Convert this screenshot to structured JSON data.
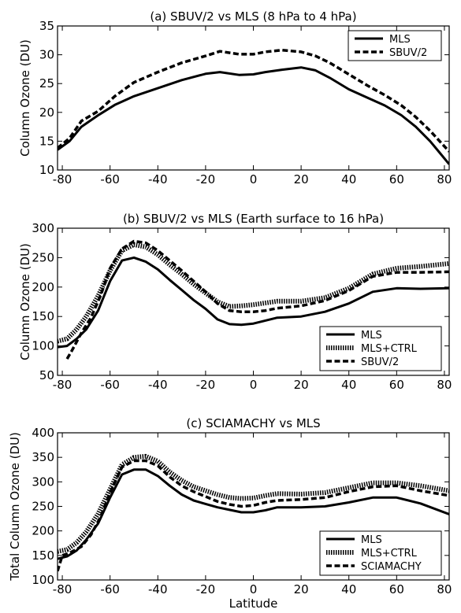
{
  "chart_data": [
    {
      "type": "line",
      "title": "(a) SBUV/2 vs MLS (8 hPa to 4 hPa)",
      "xlabel": "",
      "ylabel": "Column Ozone (DU)",
      "xlim": [
        -82,
        82
      ],
      "ylim": [
        10,
        35
      ],
      "xticks": [
        -80,
        -60,
        -40,
        -20,
        0,
        20,
        40,
        60,
        80
      ],
      "yticks": [
        10,
        15,
        20,
        25,
        30,
        35
      ],
      "legend_position": "top-right",
      "series": [
        {
          "name": "MLS",
          "style": "solid",
          "x": [
            -82,
            -77,
            -72,
            -65,
            -58,
            -50,
            -40,
            -30,
            -20,
            -14,
            -6,
            0,
            5,
            12,
            20,
            26,
            32,
            40,
            48,
            55,
            62,
            68,
            74,
            78,
            82
          ],
          "y": [
            13.5,
            15.0,
            17.5,
            19.5,
            21.3,
            22.8,
            24.2,
            25.6,
            26.7,
            27.0,
            26.5,
            26.6,
            27.0,
            27.4,
            27.8,
            27.3,
            26.0,
            24.0,
            22.5,
            21.2,
            19.5,
            17.5,
            15.0,
            13.0,
            11.0
          ]
        },
        {
          "name": "SBUV/2",
          "style": "dashed",
          "x": [
            -82,
            -77,
            -72,
            -65,
            -58,
            -50,
            -40,
            -30,
            -20,
            -14,
            -6,
            0,
            5,
            12,
            20,
            26,
            32,
            40,
            48,
            55,
            62,
            68,
            74,
            78,
            82
          ],
          "y": [
            13.8,
            15.5,
            18.5,
            20.2,
            22.8,
            25.2,
            27.0,
            28.6,
            29.8,
            30.6,
            30.1,
            30.1,
            30.5,
            30.8,
            30.5,
            29.8,
            28.6,
            26.6,
            24.6,
            23.0,
            21.2,
            19.2,
            16.8,
            15.0,
            13.2
          ]
        }
      ]
    },
    {
      "type": "line",
      "title": "(b) SBUV/2 vs MLS (Earth surface to  16 hPa)",
      "xlabel": "",
      "ylabel": "Column Ozone (DU)",
      "xlim": [
        -82,
        82
      ],
      "ylim": [
        50,
        300
      ],
      "xticks": [
        -80,
        -60,
        -40,
        -20,
        0,
        20,
        40,
        60,
        80
      ],
      "yticks": [
        50,
        100,
        150,
        200,
        250,
        300
      ],
      "legend_position": "bottom-right",
      "series": [
        {
          "name": "MLS",
          "style": "solid",
          "x": [
            -82,
            -78,
            -74,
            -70,
            -65,
            -60,
            -55,
            -50,
            -45,
            -40,
            -35,
            -30,
            -25,
            -20,
            -15,
            -10,
            -5,
            0,
            5,
            10,
            20,
            30,
            40,
            50,
            60,
            70,
            82
          ],
          "y": [
            98,
            100,
            112,
            128,
            160,
            210,
            245,
            250,
            243,
            230,
            212,
            195,
            178,
            163,
            145,
            137,
            136,
            138,
            143,
            148,
            150,
            158,
            172,
            192,
            198,
            197,
            198
          ]
        },
        {
          "name": "MLS+CTRL",
          "style": "dotted",
          "x": [
            -82,
            -78,
            -74,
            -70,
            -65,
            -60,
            -55,
            -50,
            -45,
            -40,
            -35,
            -30,
            -25,
            -20,
            -15,
            -10,
            -5,
            0,
            5,
            10,
            20,
            30,
            40,
            50,
            60,
            70,
            82
          ],
          "y": [
            108,
            112,
            128,
            150,
            185,
            228,
            262,
            272,
            268,
            255,
            238,
            222,
            205,
            190,
            175,
            167,
            168,
            170,
            173,
            176,
            176,
            182,
            198,
            222,
            232,
            235,
            240
          ]
        },
        {
          "name": "SBUV/2",
          "style": "dashed",
          "x": [
            -78,
            -76,
            -72,
            -68,
            -64,
            -60,
            -55,
            -50,
            -45,
            -40,
            -35,
            -30,
            -25,
            -20,
            -15,
            -10,
            -5,
            0,
            5,
            10,
            20,
            30,
            40,
            50,
            60,
            70,
            82
          ],
          "y": [
            78,
            92,
            122,
            148,
            185,
            232,
            265,
            278,
            275,
            262,
            245,
            228,
            210,
            192,
            172,
            160,
            158,
            158,
            160,
            164,
            168,
            177,
            194,
            218,
            225,
            225,
            226
          ]
        }
      ]
    },
    {
      "type": "line",
      "title": "(c) SCIAMACHY vs MLS",
      "xlabel": "Latitude",
      "ylabel": "Total Column Ozone (DU)",
      "xlim": [
        -82,
        82
      ],
      "ylim": [
        100,
        400
      ],
      "xticks": [
        -80,
        -60,
        -40,
        -20,
        0,
        20,
        40,
        60,
        80
      ],
      "yticks": [
        100,
        150,
        200,
        250,
        300,
        350,
        400
      ],
      "legend_position": "bottom-right",
      "series": [
        {
          "name": "MLS",
          "style": "solid",
          "x": [
            -82,
            -78,
            -74,
            -70,
            -65,
            -60,
            -55,
            -50,
            -45,
            -40,
            -35,
            -30,
            -25,
            -20,
            -15,
            -10,
            -5,
            0,
            5,
            10,
            20,
            30,
            40,
            50,
            60,
            70,
            82
          ],
          "y": [
            143,
            148,
            160,
            182,
            215,
            268,
            315,
            325,
            325,
            312,
            292,
            274,
            262,
            255,
            248,
            243,
            238,
            238,
            242,
            248,
            248,
            250,
            258,
            268,
            268,
            256,
            234
          ]
        },
        {
          "name": "MLS+CTRL",
          "style": "dotted",
          "x": [
            -82,
            -78,
            -74,
            -70,
            -65,
            -60,
            -55,
            -50,
            -45,
            -40,
            -35,
            -30,
            -25,
            -20,
            -15,
            -10,
            -5,
            0,
            5,
            10,
            20,
            30,
            40,
            50,
            60,
            70,
            82
          ],
          "y": [
            158,
            162,
            176,
            198,
            235,
            285,
            335,
            350,
            352,
            342,
            320,
            303,
            290,
            282,
            274,
            268,
            266,
            267,
            272,
            276,
            275,
            278,
            288,
            298,
            298,
            292,
            282
          ]
        },
        {
          "name": "SCIAMACHY",
          "style": "dashed",
          "x": [
            -82,
            -80,
            -77,
            -72,
            -68,
            -64,
            -60,
            -55,
            -50,
            -45,
            -40,
            -35,
            -30,
            -25,
            -20,
            -15,
            -10,
            -5,
            0,
            5,
            10,
            20,
            30,
            40,
            50,
            60,
            70,
            82
          ],
          "y": [
            118,
            150,
            155,
            168,
            192,
            228,
            278,
            330,
            343,
            343,
            333,
            310,
            292,
            280,
            270,
            260,
            254,
            250,
            252,
            258,
            262,
            264,
            268,
            280,
            290,
            292,
            282,
            272
          ]
        }
      ]
    }
  ]
}
